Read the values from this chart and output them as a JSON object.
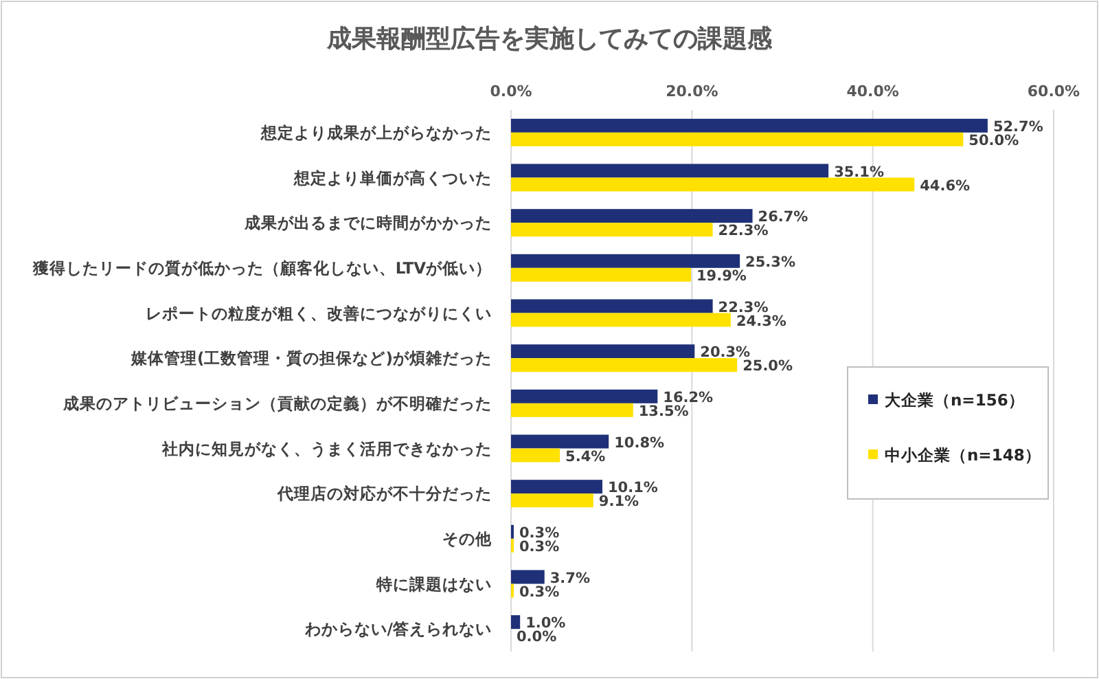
{
  "chart_data": {
    "type": "bar",
    "orientation": "horizontal",
    "title": "成果報酬型広告を実施してみての課題感",
    "categories": [
      "想定より成果が上がらなかった",
      "想定より単価が高くついた",
      "成果が出るまでに時間がかかった",
      "獲得したリードの質が低かった（顧客化しない、LTVが低い）",
      "レポートの粒度が粗く、改善につながりにくい",
      "媒体管理(工数管理・質の担保など)が煩雑だった",
      "成果のアトリビューション（貢献の定義）が不明確だった",
      "社内に知見がなく、うまく活用できなかった",
      "代理店の対応が不十分だった",
      "その他",
      "特に課題はない",
      "わからない/答えられない"
    ],
    "series": [
      {
        "name": "大企業（n=156）",
        "color": "#1f3078",
        "values": [
          52.7,
          35.1,
          26.7,
          25.3,
          22.3,
          20.3,
          16.2,
          10.8,
          10.1,
          0.3,
          3.7,
          1.0
        ],
        "value_labels": [
          "52.7%",
          "35.1%",
          "26.7%",
          "25.3%",
          "22.3%",
          "20.3%",
          "16.2%",
          "10.8%",
          "10.1%",
          "0.3%",
          "3.7%",
          "1.0%"
        ]
      },
      {
        "name": "中小企業（n=148）",
        "color": "#ffe100",
        "values": [
          50.0,
          44.6,
          22.3,
          19.9,
          24.3,
          25.0,
          13.5,
          5.4,
          9.1,
          0.3,
          0.3,
          0.0
        ],
        "value_labels": [
          "50.0%",
          "44.6%",
          "22.3%",
          "19.9%",
          "24.3%",
          "25.0%",
          "13.5%",
          "5.4%",
          "9.1%",
          "0.3%",
          "0.3%",
          "0.0%"
        ]
      }
    ],
    "xlim": [
      0,
      60
    ],
    "xticks": [
      {
        "value": 0,
        "label": "0.0%"
      },
      {
        "value": 20,
        "label": "20.0%"
      },
      {
        "value": 40,
        "label": "40.0%"
      },
      {
        "value": 60,
        "label": "60.0%"
      }
    ],
    "grid": "x",
    "legend": "right"
  }
}
